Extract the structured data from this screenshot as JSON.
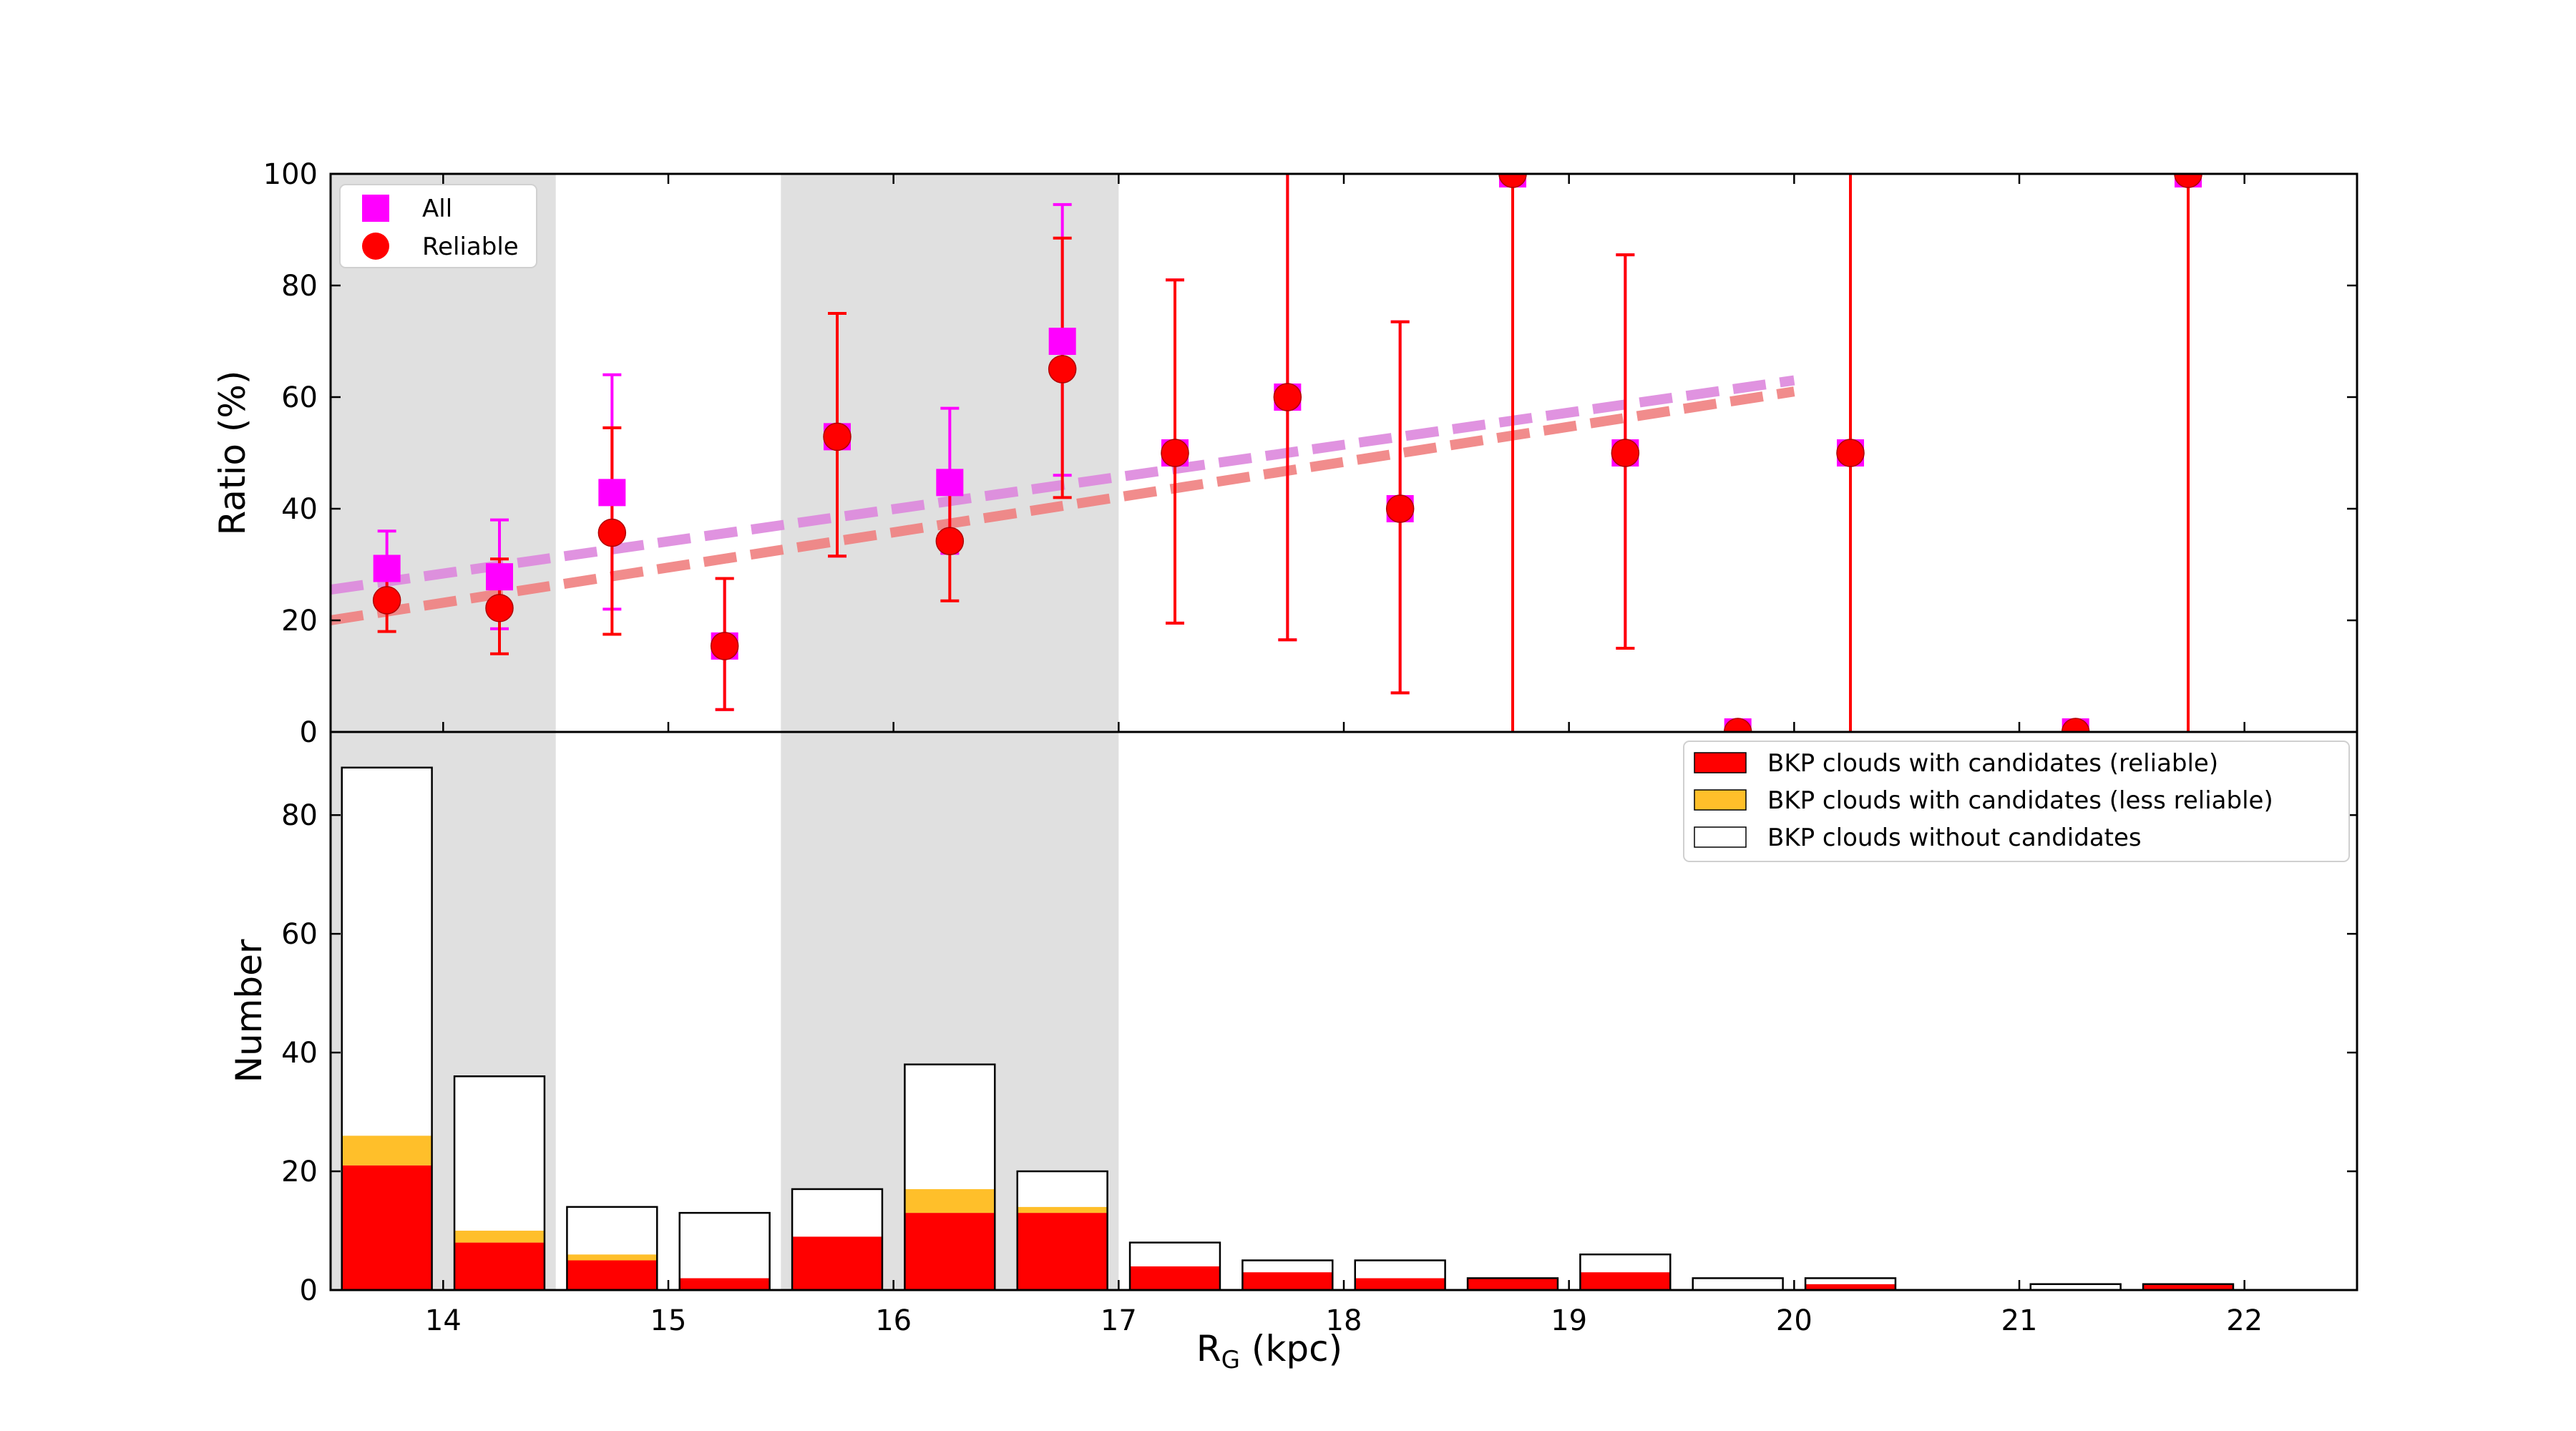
{
  "chart_data": [
    {
      "type": "scatter",
      "panel": "top",
      "ylabel": "Ratio (%)",
      "xlabel": "",
      "xlim": [
        13.5,
        22.5
      ],
      "ylim": [
        0,
        100
      ],
      "x_ticks": [
        14,
        15,
        16,
        17,
        18,
        19,
        20,
        21,
        22
      ],
      "y_ticks": [
        0,
        20,
        40,
        60,
        80,
        100
      ],
      "y_tick_labels": [
        "0",
        "20",
        "40",
        "60",
        "80",
        "100"
      ],
      "shaded_ranges": [
        [
          13.5,
          14.5
        ],
        [
          15.5,
          17.0
        ]
      ],
      "legend_position": "upper-left",
      "series": [
        {
          "name": "All",
          "marker": "square",
          "color": "#ff00ff",
          "points": [
            {
              "x": 13.75,
              "y": 29.3,
              "lo": 23.0,
              "hi": 36.0
            },
            {
              "x": 14.25,
              "y": 27.8,
              "lo": 18.5,
              "hi": 38.0
            },
            {
              "x": 14.75,
              "y": 42.9,
              "lo": 22.0,
              "hi": 64.0
            },
            {
              "x": 15.25,
              "y": 15.4,
              "lo": 4.0,
              "hi": 27.5
            },
            {
              "x": 15.75,
              "y": 52.9,
              "lo": 31.5,
              "hi": 75.0
            },
            {
              "x": 16.25,
              "y": 44.7,
              "lo": 32.0,
              "hi": 58.0
            },
            {
              "x": 16.75,
              "y": 70.0,
              "lo": 46.0,
              "hi": 94.5
            },
            {
              "x": 17.25,
              "y": 50.0,
              "lo": 19.5,
              "hi": 81.0
            },
            {
              "x": 17.75,
              "y": 60.0,
              "lo": 16.5,
              "hi": 103.5
            },
            {
              "x": 18.25,
              "y": 40.0,
              "lo": 7.0,
              "hi": 73.5
            },
            {
              "x": 18.75,
              "y": 100.0,
              "lo": 0.0,
              "hi": 100.0
            },
            {
              "x": 19.25,
              "y": 50.0,
              "lo": 15.0,
              "hi": 85.5
            },
            {
              "x": 19.75,
              "y": 0.0,
              "lo": 0.0,
              "hi": 0.0
            },
            {
              "x": 20.25,
              "y": 50.0,
              "lo": 0.0,
              "hi": 100.0
            },
            {
              "x": 21.25,
              "y": 0.0,
              "lo": 0.0,
              "hi": 0.0
            },
            {
              "x": 21.75,
              "y": 100.0,
              "lo": 0.0,
              "hi": 100.0
            }
          ]
        },
        {
          "name": "Reliable",
          "marker": "circle",
          "color": "#ff0000",
          "points": [
            {
              "x": 13.75,
              "y": 23.6,
              "lo": 18.0,
              "hi": 29.5
            },
            {
              "x": 14.25,
              "y": 22.2,
              "lo": 14.0,
              "hi": 31.0
            },
            {
              "x": 14.75,
              "y": 35.7,
              "lo": 17.5,
              "hi": 54.5
            },
            {
              "x": 15.25,
              "y": 15.4,
              "lo": 4.0,
              "hi": 27.5
            },
            {
              "x": 15.75,
              "y": 52.9,
              "lo": 31.5,
              "hi": 75.0
            },
            {
              "x": 16.25,
              "y": 34.2,
              "lo": 23.5,
              "hi": 45.0
            },
            {
              "x": 16.75,
              "y": 65.0,
              "lo": 42.0,
              "hi": 88.5
            },
            {
              "x": 17.25,
              "y": 50.0,
              "lo": 19.5,
              "hi": 81.0
            },
            {
              "x": 17.75,
              "y": 60.0,
              "lo": 16.5,
              "hi": 103.5
            },
            {
              "x": 18.25,
              "y": 40.0,
              "lo": 7.0,
              "hi": 73.5
            },
            {
              "x": 18.75,
              "y": 100.0,
              "lo": 0.0,
              "hi": 100.0
            },
            {
              "x": 19.25,
              "y": 50.0,
              "lo": 15.0,
              "hi": 85.5
            },
            {
              "x": 19.75,
              "y": 0.0,
              "lo": 0.0,
              "hi": 0.0
            },
            {
              "x": 20.25,
              "y": 50.0,
              "lo": 0.0,
              "hi": 100.0
            },
            {
              "x": 21.25,
              "y": 0.0,
              "lo": 0.0,
              "hi": 0.0
            },
            {
              "x": 21.75,
              "y": 100.0,
              "lo": 0.0,
              "hi": 100.0
            }
          ]
        }
      ],
      "fits": [
        {
          "name": "All fit",
          "color": "#dd88dd",
          "x": [
            13.5,
            20.0
          ],
          "y": [
            25.5,
            63.0
          ]
        },
        {
          "name": "Reliable fit",
          "color": "#f08080",
          "x": [
            13.5,
            20.0
          ],
          "y": [
            20.0,
            61.0
          ]
        }
      ]
    },
    {
      "type": "bar",
      "panel": "bottom",
      "stacked": true,
      "ylabel": "Number",
      "xlabel": "R",
      "xlabel_sub": "G",
      "xlabel_suffix": " (kpc)",
      "xlim": [
        13.5,
        22.5
      ],
      "ylim": [
        0,
        94
      ],
      "x_ticks": [
        14,
        15,
        16,
        17,
        18,
        19,
        20,
        21,
        22
      ],
      "x_tick_labels": [
        "14",
        "15",
        "16",
        "17",
        "18",
        "19",
        "20",
        "21",
        "22"
      ],
      "y_ticks": [
        0,
        20,
        40,
        60,
        80
      ],
      "y_tick_labels": [
        "0",
        "20",
        "40",
        "60",
        "80"
      ],
      "shaded_ranges": [
        [
          13.5,
          14.5
        ],
        [
          15.5,
          17.0
        ]
      ],
      "legend_position": "upper-right",
      "bin_centers": [
        13.75,
        14.25,
        14.75,
        15.25,
        15.75,
        16.25,
        16.75,
        17.25,
        17.75,
        18.25,
        18.75,
        19.25,
        19.75,
        20.25,
        20.75,
        21.25,
        21.75
      ],
      "bar_width": 0.4,
      "series": [
        {
          "name": "BKP clouds with candidates (reliable)",
          "color": "#ff0000",
          "values": [
            21,
            8,
            5,
            2,
            9,
            13,
            13,
            4,
            3,
            2,
            2,
            3,
            0,
            1,
            0,
            0,
            1
          ]
        },
        {
          "name": "BKP clouds with candidates (less reliable)",
          "color": "#ffbf2a",
          "values": [
            5,
            2,
            1,
            0,
            0,
            4,
            1,
            0,
            0,
            0,
            0,
            0,
            0,
            0,
            0,
            0,
            0
          ]
        },
        {
          "name": "BKP clouds without candidates",
          "color": "#ffffff",
          "values": [
            62,
            26,
            8,
            11,
            8,
            21,
            6,
            4,
            2,
            3,
            0,
            3,
            2,
            1,
            0,
            1,
            0
          ]
        }
      ]
    }
  ]
}
